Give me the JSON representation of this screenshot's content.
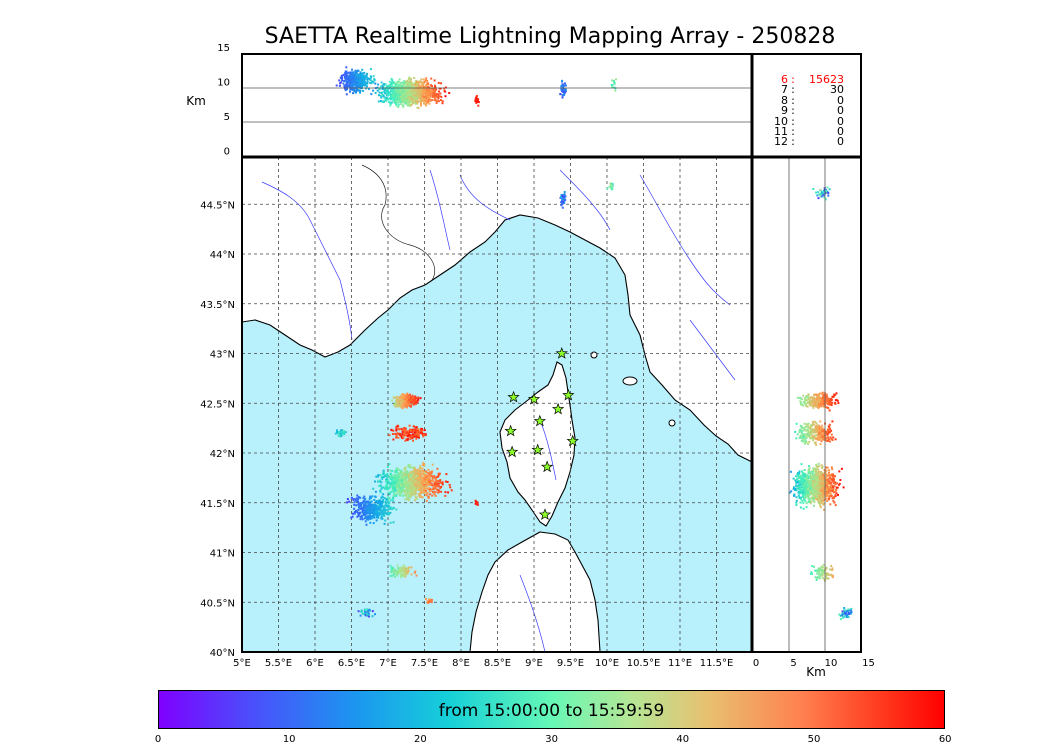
{
  "title": "SAETTA Realtime Lightning Mapping Array - 250828",
  "alt_panel": {
    "ylabel": "Km",
    "yticks": [
      "15",
      "10",
      "5",
      "0"
    ]
  },
  "side_panel": {
    "xlabel": "Km",
    "xticks": [
      "0",
      "5",
      "10",
      "15"
    ]
  },
  "map": {
    "lon_ticks": [
      "5°E",
      "5.5°E",
      "6°E",
      "6.5°E",
      "7°E",
      "7.5°E",
      "8°E",
      "8.5°E",
      "9°E",
      "9.5°E",
      "10°E",
      "10.5°E",
      "11°E",
      "11.5°E"
    ],
    "lat_ticks": [
      "44.5°N",
      "44°N",
      "43.5°N",
      "43°N",
      "42.5°N",
      "42°N",
      "41.5°N",
      "41°N",
      "40.5°N",
      "40°N"
    ],
    "colors": {
      "sea": "#b8f0fc",
      "land": "#ffffff",
      "coast": "#000000",
      "river": "#3a3aff",
      "station": "#8cff2a"
    },
    "stations": [
      {
        "lon": 9.38,
        "lat": 43.0
      },
      {
        "lon": 8.72,
        "lat": 42.56
      },
      {
        "lon": 9.0,
        "lat": 42.54
      },
      {
        "lon": 9.47,
        "lat": 42.58
      },
      {
        "lon": 9.33,
        "lat": 42.44
      },
      {
        "lon": 9.08,
        "lat": 42.32
      },
      {
        "lon": 8.68,
        "lat": 42.22
      },
      {
        "lon": 9.53,
        "lat": 42.12
      },
      {
        "lon": 8.7,
        "lat": 42.01
      },
      {
        "lon": 9.05,
        "lat": 42.03
      },
      {
        "lon": 9.18,
        "lat": 41.86
      },
      {
        "lon": 9.15,
        "lat": 41.38
      }
    ]
  },
  "stats": [
    {
      "hour": "6",
      "sep": ":",
      "count": "15623",
      "highlight": true
    },
    {
      "hour": "7",
      "sep": ":",
      "count": "30",
      "highlight": false
    },
    {
      "hour": "8",
      "sep": ":",
      "count": "0",
      "highlight": false
    },
    {
      "hour": "9",
      "sep": ":",
      "count": "0",
      "highlight": false
    },
    {
      "hour": "10",
      "sep": ":",
      "count": "0",
      "highlight": false
    },
    {
      "hour": "11",
      "sep": ":",
      "count": "0",
      "highlight": false
    },
    {
      "hour": "12",
      "sep": ":",
      "count": "0",
      "highlight": false
    }
  ],
  "colorbar": {
    "label": "from 15:00:00 to 15:59:59",
    "ticks": [
      "0",
      "10",
      "20",
      "30",
      "40",
      "50",
      "60"
    ]
  }
}
